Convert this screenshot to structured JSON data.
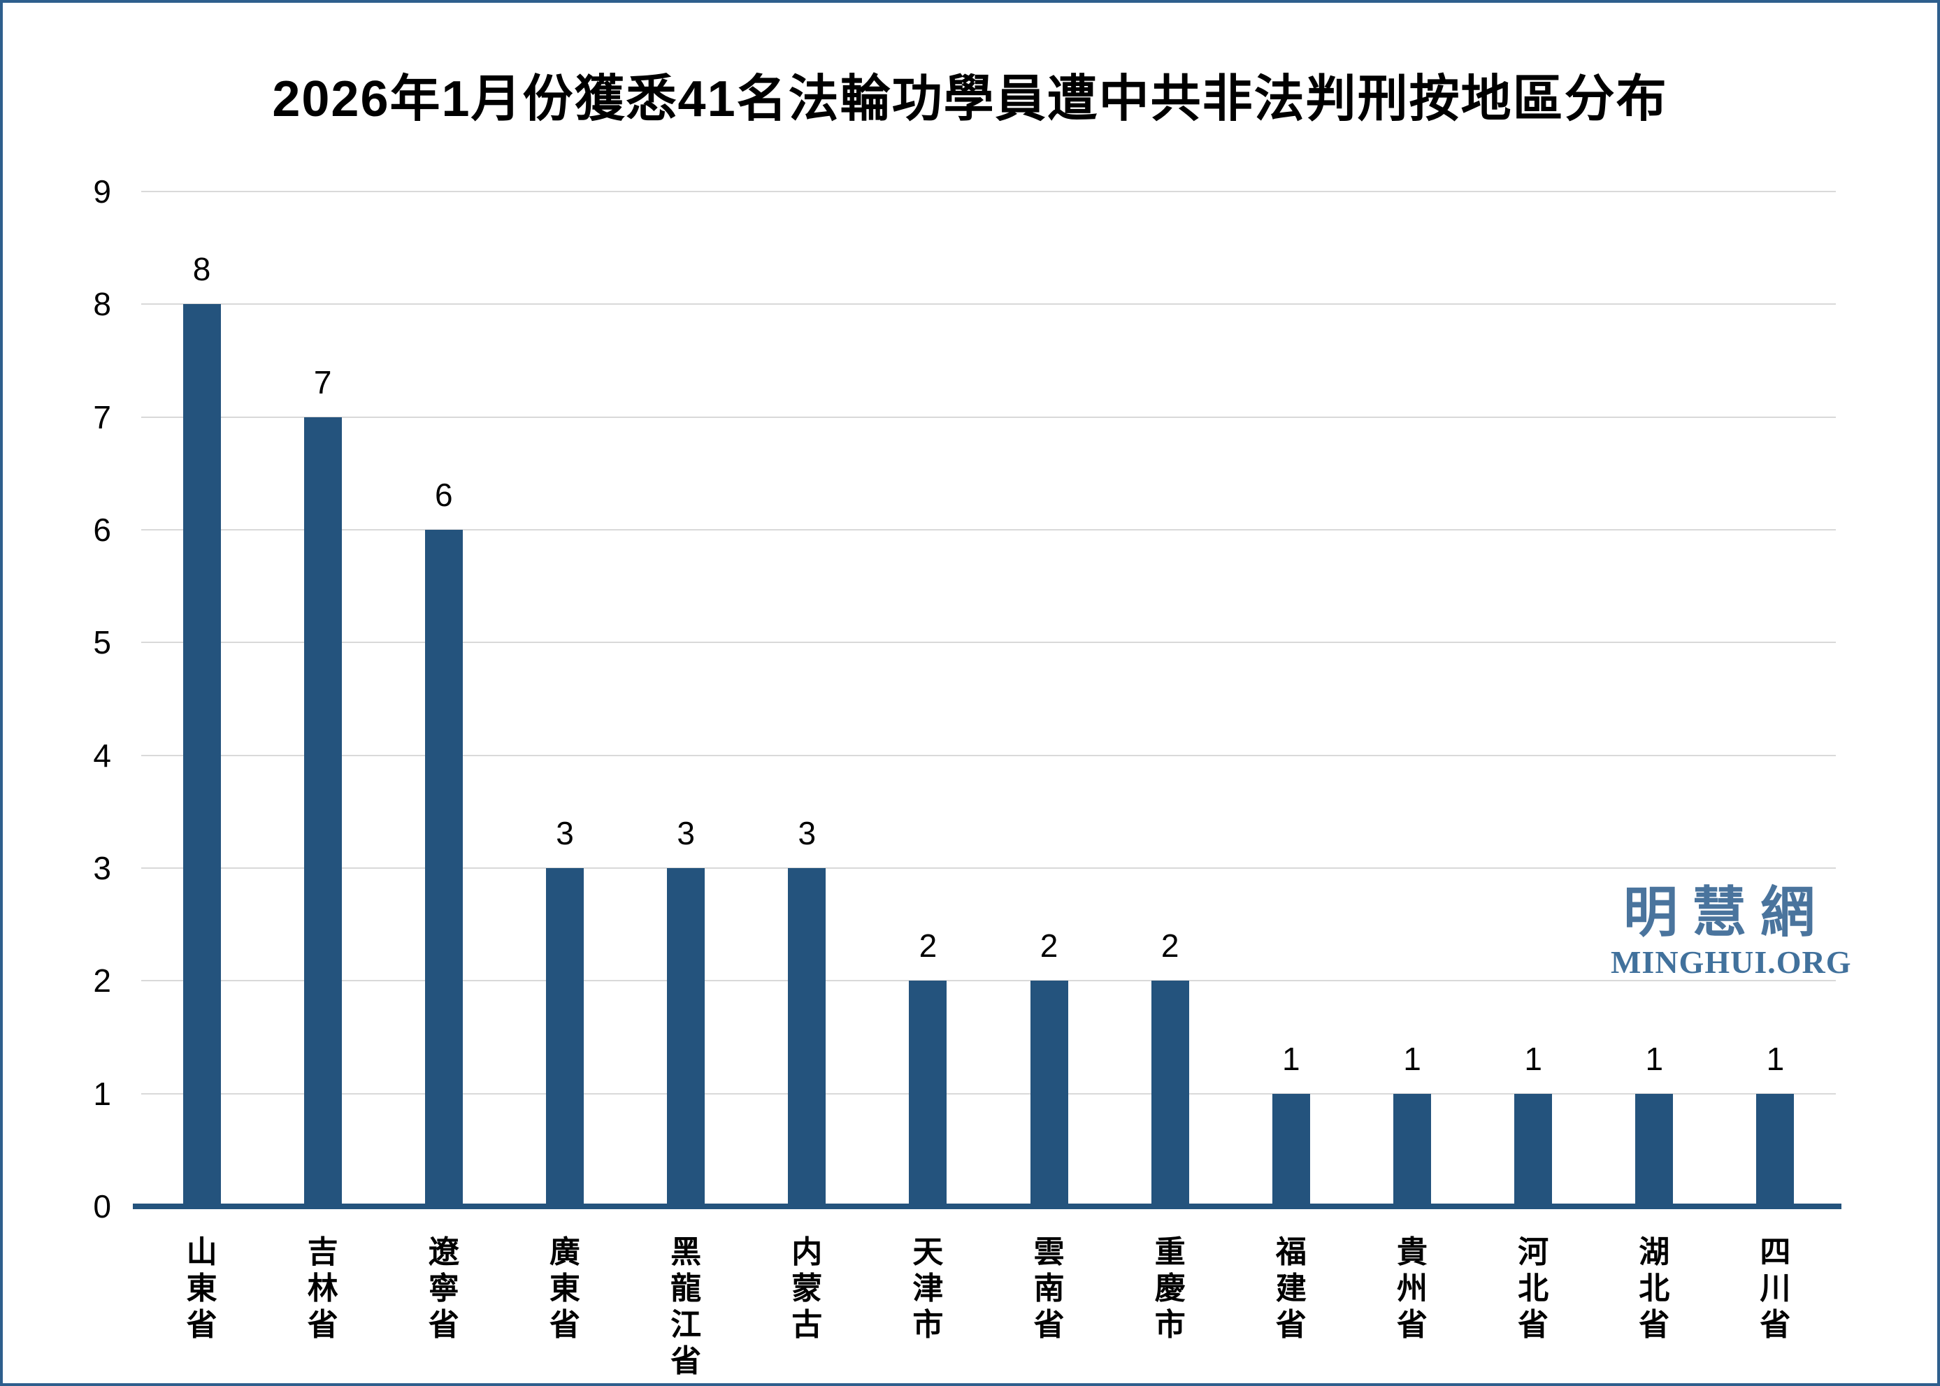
{
  "page": {
    "background": "#ffffff",
    "frame_border_color": "#2e5f8d"
  },
  "chart_data": {
    "type": "bar",
    "title": "2026年1月份獲悉41名法輪功學員遭中共非法判刑按地區分布",
    "categories": [
      "山東省",
      "吉林省",
      "遼寧省",
      "廣東省",
      "黑龍江省",
      "内蒙古",
      "天津市",
      "雲南省",
      "重慶市",
      "福建省",
      "貴州省",
      "河北省",
      "湖北省",
      "四川省"
    ],
    "values": [
      8,
      7,
      6,
      3,
      3,
      3,
      2,
      2,
      2,
      1,
      1,
      1,
      1,
      1
    ],
    "value_labels": [
      "8",
      "7",
      "6",
      "3",
      "3",
      "3",
      "2",
      "2",
      "2",
      "1",
      "1",
      "1",
      "1",
      "1"
    ],
    "total": 41,
    "xlabel": "",
    "ylabel": "",
    "ylim": [
      0,
      9
    ],
    "yticks": [
      0,
      1,
      2,
      3,
      4,
      5,
      6,
      7,
      8,
      9
    ],
    "grid": "horizontal",
    "legend": "none",
    "bar_color": "#24537d",
    "axis_line_color": "#24537d",
    "gridline_color": "#d9d9d9",
    "tick_label_color": "#000000",
    "value_label_color": "#000000",
    "title_color": "#000000"
  },
  "watermark": {
    "cjk": "明慧網",
    "latin": "MINGHUI.ORG",
    "cjk_color": "#4a749d",
    "latin_color": "#41719c"
  }
}
